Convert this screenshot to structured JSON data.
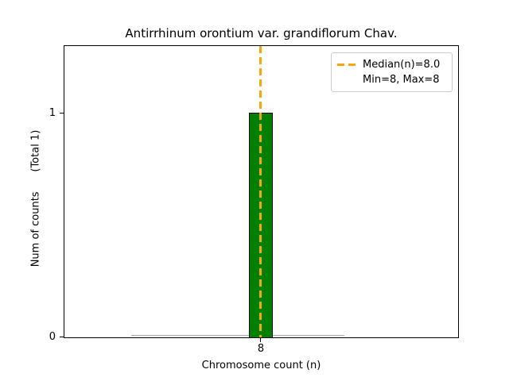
{
  "chart_data": {
    "type": "bar",
    "subtype": "histogram",
    "title": "Antirrhinum orontium var. grandiflorum Chav.",
    "xlabel": "Chromosome count (n)",
    "ylabel": "Num of counts      (Total 1)",
    "ylabel_main": "Num of counts",
    "ylabel_annotation": "(Total 1)",
    "categories": [
      8
    ],
    "values": [
      1
    ],
    "total_counts": 1,
    "xticks": [
      "8"
    ],
    "yticks": [
      "0",
      "1"
    ],
    "ylim": [
      0,
      1.3
    ],
    "grid": false,
    "bar_color": "#008000",
    "bar_edge_color": "#000000",
    "median_line": {
      "x": 8.0,
      "color": "#FFA500",
      "style": "dashed",
      "orientation": "vertical"
    },
    "stats": {
      "median": 8.0,
      "min": 8,
      "max": 8
    },
    "legend": {
      "position": "upper right",
      "entries": [
        {
          "label": "Median(n)=8.0",
          "marker": "orange-dashed-line",
          "color": "#FFA500"
        },
        {
          "label": "Min=8, Max=8",
          "marker": "none"
        }
      ]
    }
  }
}
